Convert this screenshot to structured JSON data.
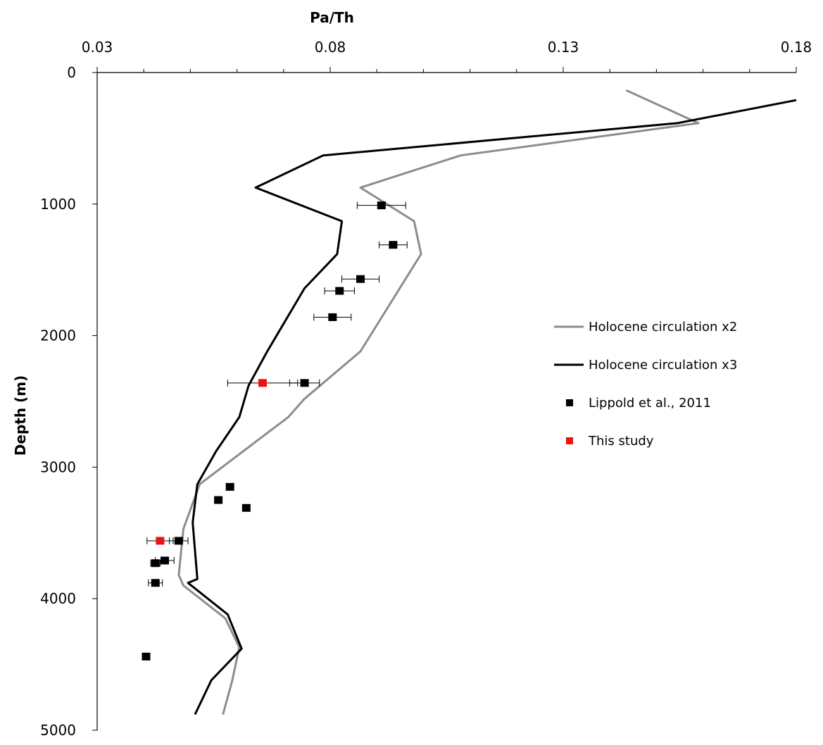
{
  "chart_data": {
    "type": "scatter",
    "title": "",
    "xlabel": "Pa/Th",
    "ylabel": "Depth (m)",
    "x_axis_position": "top",
    "y_axis_inverted": true,
    "xlim": [
      0.03,
      0.18
    ],
    "ylim": [
      0,
      5000
    ],
    "x_ticks": [
      0.03,
      0.08,
      0.13,
      0.18
    ],
    "x_tick_labels": [
      "0.03",
      "0.08",
      "0.13",
      "0.18"
    ],
    "x_minor_step": 0.01,
    "y_ticks": [
      0,
      1000,
      2000,
      3000,
      4000,
      5000
    ],
    "y_tick_labels": [
      "0",
      "1000",
      "2000",
      "3000",
      "4000",
      "5000"
    ],
    "grid": false,
    "legend_position": "right",
    "colors": {
      "x2_line": "#8c8c8c",
      "x3_line": "#000000",
      "lippold": "#000000",
      "this_study": "#ee1111"
    },
    "line_series": [
      {
        "name": "Holocene circulation x2",
        "color_key": "x2_line",
        "points": [
          [
            0.1435,
            135
          ],
          [
            0.159,
            385
          ],
          [
            0.108,
            630
          ],
          [
            0.0865,
            875
          ],
          [
            0.098,
            1130
          ],
          [
            0.0995,
            1380
          ],
          [
            0.0865,
            2120
          ],
          [
            0.0745,
            2480
          ],
          [
            0.071,
            2620
          ],
          [
            0.052,
            3130
          ],
          [
            0.0485,
            3470
          ],
          [
            0.0475,
            3820
          ],
          [
            0.0485,
            3900
          ],
          [
            0.0575,
            4150
          ],
          [
            0.0605,
            4370
          ],
          [
            0.059,
            4620
          ],
          [
            0.057,
            4880
          ]
        ]
      },
      {
        "name": "Holocene circulation x3",
        "color_key": "x3_line",
        "points": [
          [
            0.18,
            210
          ],
          [
            0.1545,
            385
          ],
          [
            0.0785,
            630
          ],
          [
            0.064,
            875
          ],
          [
            0.0825,
            1130
          ],
          [
            0.0815,
            1380
          ],
          [
            0.0745,
            1640
          ],
          [
            0.0665,
            2120
          ],
          [
            0.0625,
            2380
          ],
          [
            0.0605,
            2620
          ],
          [
            0.0555,
            2880
          ],
          [
            0.0515,
            3130
          ],
          [
            0.0505,
            3420
          ],
          [
            0.0515,
            3850
          ],
          [
            0.0495,
            3880
          ],
          [
            0.058,
            4120
          ],
          [
            0.061,
            4380
          ],
          [
            0.0545,
            4620
          ],
          [
            0.051,
            4880
          ]
        ]
      }
    ],
    "scatter_series": [
      {
        "name": "Lippold et al., 2011",
        "color_key": "lippold",
        "points": [
          {
            "x": 0.091,
            "y": 1010,
            "xerr": 0.0052
          },
          {
            "x": 0.0935,
            "y": 1310,
            "xerr": 0.003
          },
          {
            "x": 0.0865,
            "y": 1570,
            "xerr": 0.004
          },
          {
            "x": 0.082,
            "y": 1660,
            "xerr": 0.0032
          },
          {
            "x": 0.0805,
            "y": 1860,
            "xerr": 0.004
          },
          {
            "x": 0.0745,
            "y": 2360,
            "xerr": 0.0032
          },
          {
            "x": 0.0585,
            "y": 3150
          },
          {
            "x": 0.056,
            "y": 3250
          },
          {
            "x": 0.062,
            "y": 3310
          },
          {
            "x": 0.0475,
            "y": 3560,
            "xerr": 0.002
          },
          {
            "x": 0.0445,
            "y": 3710,
            "xerr": 0.002
          },
          {
            "x": 0.0425,
            "y": 3730,
            "xerr": 0.001
          },
          {
            "x": 0.0425,
            "y": 3880,
            "xerr": 0.0015
          },
          {
            "x": 0.0405,
            "y": 4440
          }
        ]
      },
      {
        "name": "This study",
        "color_key": "this_study",
        "points": [
          {
            "x": 0.0655,
            "y": 2360,
            "xerr": 0.0075
          },
          {
            "x": 0.0435,
            "y": 3560,
            "xerr": 0.0028
          }
        ]
      }
    ],
    "legend": [
      {
        "label": "Holocene circulation x2",
        "kind": "line",
        "color_key": "x2_line"
      },
      {
        "label": "Holocene circulation x3",
        "kind": "line",
        "color_key": "x3_line"
      },
      {
        "label": "Lippold et al., 2011",
        "kind": "marker",
        "color_key": "lippold"
      },
      {
        "label": "This study",
        "kind": "marker",
        "color_key": "this_study"
      }
    ]
  }
}
